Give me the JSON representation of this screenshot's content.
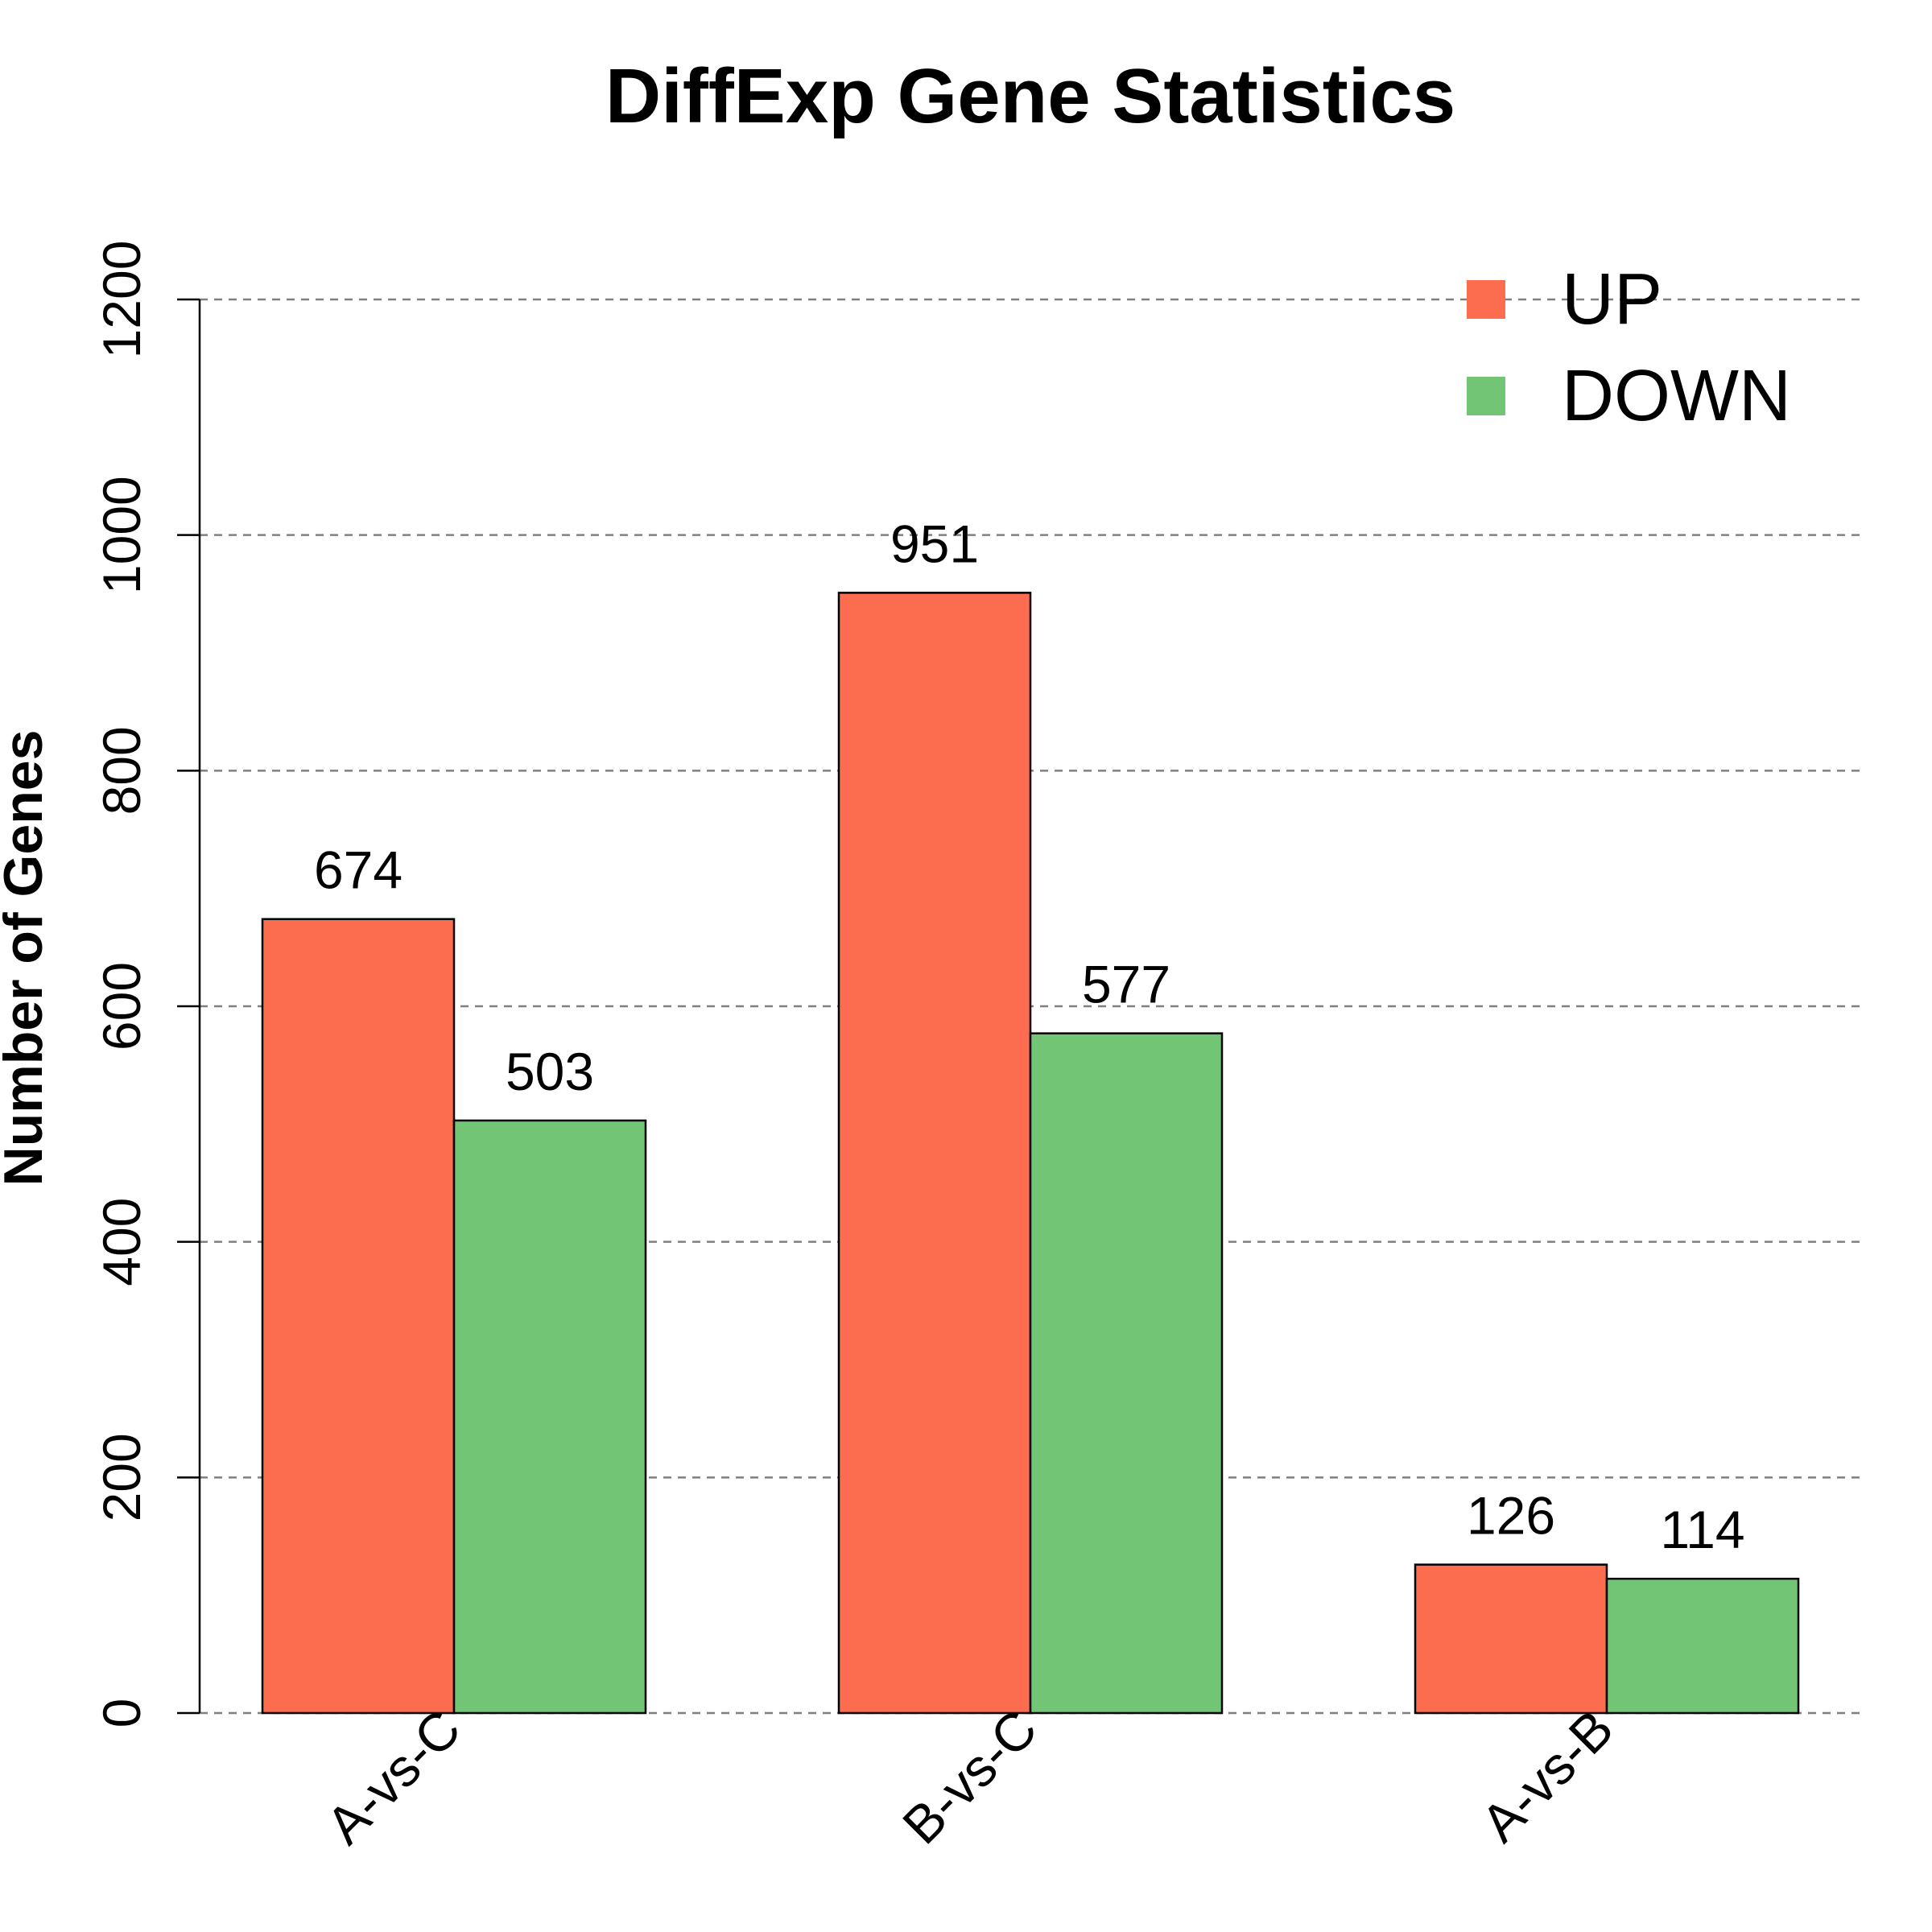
{
  "chart_data": {
    "type": "bar",
    "title": "DiffExp Gene Statistics",
    "xlabel": "",
    "ylabel": "Number of Genes",
    "ylim": [
      0,
      1200
    ],
    "yticks": [
      0,
      200,
      400,
      600,
      800,
      1000,
      1200
    ],
    "grid": true,
    "legend_position": "top-right",
    "categories": [
      "A-vs-C",
      "B-vs-C",
      "A-vs-B"
    ],
    "series": [
      {
        "name": "UP",
        "color": "#FC6C4E",
        "values": [
          674,
          951,
          126
        ]
      },
      {
        "name": "DOWN",
        "color": "#73C576",
        "values": [
          503,
          577,
          114
        ]
      }
    ]
  }
}
